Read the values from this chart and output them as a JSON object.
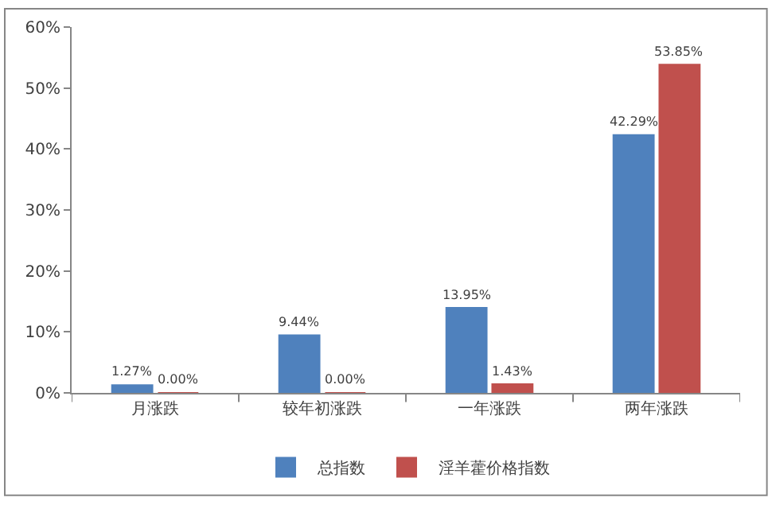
{
  "chart_data": {
    "type": "bar",
    "categories": [
      "月涨跌",
      "较年初涨跌",
      "一年涨跌",
      "两年涨跌"
    ],
    "series": [
      {
        "name": "总指数",
        "color": "#4f81bd",
        "values": [
          1.27,
          9.44,
          13.95,
          42.29
        ],
        "value_labels": [
          "1.27%",
          "9.44%",
          "13.95%",
          "42.29%"
        ]
      },
      {
        "name": "淫羊藿价格指数",
        "color": "#c0504d",
        "values": [
          0.0,
          0.0,
          1.43,
          53.85
        ],
        "value_labels": [
          "0.00%",
          "0.00%",
          "1.43%",
          "53.85%"
        ]
      }
    ],
    "ylim": [
      0,
      60
    ],
    "yticks": [
      {
        "value": 0,
        "label": "0%"
      },
      {
        "value": 10,
        "label": "10%"
      },
      {
        "value": 20,
        "label": "20%"
      },
      {
        "value": 30,
        "label": "30%"
      },
      {
        "value": 40,
        "label": "40%"
      },
      {
        "value": 50,
        "label": "50%"
      },
      {
        "value": 60,
        "label": "60%"
      }
    ],
    "grid": false,
    "legend": "bottom"
  }
}
